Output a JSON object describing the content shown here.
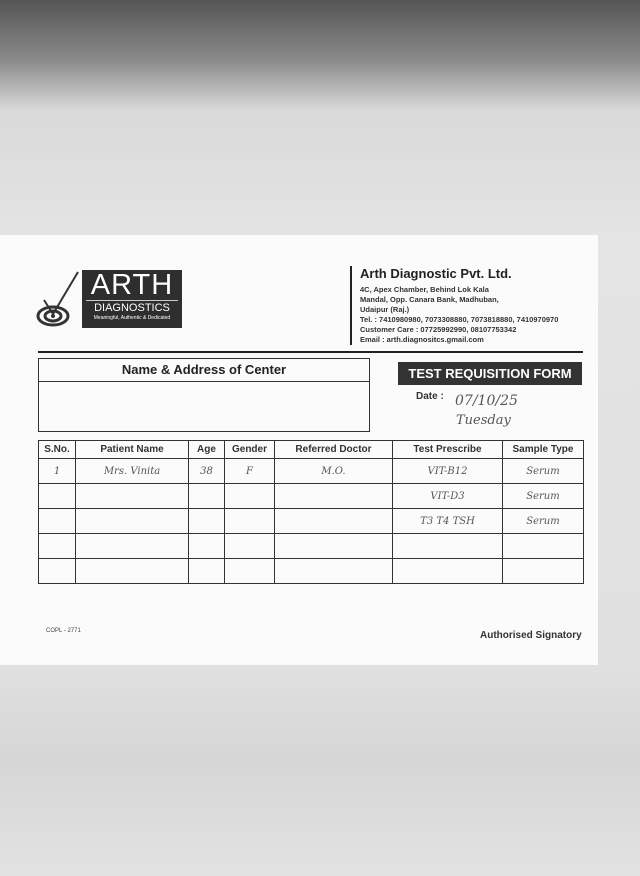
{
  "logo": {
    "name": "ARTH",
    "sub": "DIAGNOSTICS",
    "tagline": "Meaningful, Authentic & Dedicated"
  },
  "company": {
    "name": "Arth Diagnostic Pvt. Ltd.",
    "lines": [
      "4C, Apex Chamber, Behind Lok Kala",
      "Mandal, Opp. Canara Bank, Madhuban,",
      "Udaipur (Raj.)",
      "Tel. : 7410980980, 7073308880, 7073818880, 7410970970",
      "Customer Care : 07725992990, 08107753342",
      "Email : arth.diagnositcs.gmail.com"
    ]
  },
  "center_box": {
    "title": "Name & Address of Center"
  },
  "form_title": "TEST REQUISITION FORM",
  "date": {
    "label": "Date :",
    "value": "07/10/25",
    "day": "Tuesday"
  },
  "table": {
    "headers": [
      "S.No.",
      "Patient Name",
      "Age",
      "Gender",
      "Referred Doctor",
      "Test Prescribe",
      "Sample Type"
    ],
    "rows": [
      [
        "1",
        "Mrs. Vinita",
        "38",
        "F",
        "M.O.",
        "VIT-B12",
        "Serum"
      ],
      [
        "",
        "",
        "",
        "",
        "",
        "VIT-D3",
        "Serum"
      ],
      [
        "",
        "",
        "",
        "",
        "",
        "T3 T4 TSH",
        "Serum"
      ],
      [
        "",
        "",
        "",
        "",
        "",
        "",
        ""
      ],
      [
        "",
        "",
        "",
        "",
        "",
        "",
        ""
      ]
    ]
  },
  "footer": {
    "code": "COPL - 2771",
    "signatory": "Authorised Signatory"
  }
}
